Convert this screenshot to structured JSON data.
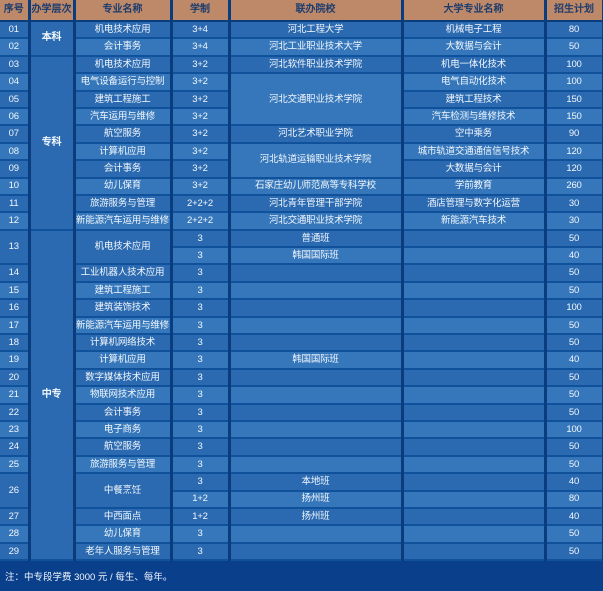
{
  "colors": {
    "page-bg": "#0a3f8c",
    "vgap": "#0a3d7e",
    "hgap": "#10519c",
    "row-a": "#2b6ab0",
    "row-b": "#3577ba",
    "level-bg": "#1d5fa8",
    "header-bg": "#bd8969",
    "header-text": "#1d3c6e",
    "cell-text": "#f2f7fd"
  },
  "table": {
    "headers": [
      "序号",
      "办学层次",
      "专业名称",
      "学制",
      "联办院校",
      "大学专业名称",
      "招生计划"
    ],
    "column_names": [
      "index",
      "level",
      "major",
      "duration",
      "partner",
      "university-major",
      "quota"
    ],
    "rows": [
      {
        "cells": [
          {
            "t": "01"
          },
          {
            "t": "本科",
            "rs": 2,
            "lvl": 1
          },
          {
            "t": "机电技术应用"
          },
          {
            "t": "3+4"
          },
          {
            "t": "河北工程大学"
          },
          {
            "t": "机械电子工程"
          },
          {
            "t": "80"
          }
        ]
      },
      {
        "cells": [
          {
            "t": "02"
          },
          {
            "t": "会计事务"
          },
          {
            "t": "3+4"
          },
          {
            "t": "河北工业职业技术大学"
          },
          {
            "t": "大数据与会计"
          },
          {
            "t": "50"
          }
        ]
      },
      {
        "cells": [
          {
            "t": "03"
          },
          {
            "t": "专科",
            "rs": 10,
            "lvl": 1
          },
          {
            "t": "机电技术应用"
          },
          {
            "t": "3+2"
          },
          {
            "t": "河北软件职业技术学院"
          },
          {
            "t": "机电一体化技术"
          },
          {
            "t": "100"
          }
        ]
      },
      {
        "cells": [
          {
            "t": "04"
          },
          {
            "t": "电气设备运行与控制"
          },
          {
            "t": "3+2"
          },
          {
            "t": "河北交通职业技术学院",
            "rs": 3
          },
          {
            "t": "电气自动化技术"
          },
          {
            "t": "100"
          }
        ]
      },
      {
        "cells": [
          {
            "t": "05"
          },
          {
            "t": "建筑工程施工"
          },
          {
            "t": "3+2"
          },
          {
            "t": "建筑工程技术"
          },
          {
            "t": "150"
          }
        ]
      },
      {
        "cells": [
          {
            "t": "06"
          },
          {
            "t": "汽车运用与维修"
          },
          {
            "t": "3+2"
          },
          {
            "t": "汽车检测与维修技术"
          },
          {
            "t": "150"
          }
        ]
      },
      {
        "cells": [
          {
            "t": "07"
          },
          {
            "t": "航空服务"
          },
          {
            "t": "3+2"
          },
          {
            "t": "河北艺术职业学院"
          },
          {
            "t": "空中乘务"
          },
          {
            "t": "90"
          }
        ]
      },
      {
        "cells": [
          {
            "t": "08"
          },
          {
            "t": "计算机应用"
          },
          {
            "t": "3+2"
          },
          {
            "t": "河北轨道运输职业技术学院",
            "rs": 2
          },
          {
            "t": "城市轨道交通通信信号技术"
          },
          {
            "t": "120"
          }
        ]
      },
      {
        "cells": [
          {
            "t": "09"
          },
          {
            "t": "会计事务"
          },
          {
            "t": "3+2"
          },
          {
            "t": "大数据与会计"
          },
          {
            "t": "120"
          }
        ]
      },
      {
        "cells": [
          {
            "t": "10"
          },
          {
            "t": "幼儿保育"
          },
          {
            "t": "3+2"
          },
          {
            "t": "石家庄幼儿师范高等专科学校"
          },
          {
            "t": "学前教育"
          },
          {
            "t": "260"
          }
        ]
      },
      {
        "cells": [
          {
            "t": "11"
          },
          {
            "t": "旅游服务与管理"
          },
          {
            "t": "2+2+2"
          },
          {
            "t": "河北青年管理干部学院"
          },
          {
            "t": "酒店管理与数字化运营"
          },
          {
            "t": "30"
          }
        ]
      },
      {
        "cells": [
          {
            "t": "12"
          },
          {
            "t": "新能源汽车运用与维修"
          },
          {
            "t": "2+2+2"
          },
          {
            "t": "河北交通职业技术学院"
          },
          {
            "t": "新能源汽车技术"
          },
          {
            "t": "30"
          }
        ]
      },
      {
        "cells": [
          {
            "t": "13",
            "rs": 2
          },
          {
            "t": "中专",
            "rs": 19,
            "lvl": 1
          },
          {
            "t": "机电技术应用",
            "rs": 2
          },
          {
            "t": "3"
          },
          {
            "t": "普通班"
          },
          {
            "t": ""
          },
          {
            "t": "50"
          }
        ]
      },
      {
        "cells": [
          {
            "t": "3"
          },
          {
            "t": "韩国国际班"
          },
          {
            "t": ""
          },
          {
            "t": "40"
          }
        ]
      },
      {
        "cells": [
          {
            "t": "14"
          },
          {
            "t": "工业机器人技术应用"
          },
          {
            "t": "3"
          },
          {
            "t": ""
          },
          {
            "t": ""
          },
          {
            "t": "50"
          }
        ]
      },
      {
        "cells": [
          {
            "t": "15"
          },
          {
            "t": "建筑工程施工"
          },
          {
            "t": "3"
          },
          {
            "t": ""
          },
          {
            "t": ""
          },
          {
            "t": "50"
          }
        ]
      },
      {
        "cells": [
          {
            "t": "16"
          },
          {
            "t": "建筑装饰技术"
          },
          {
            "t": "3"
          },
          {
            "t": ""
          },
          {
            "t": ""
          },
          {
            "t": "100"
          }
        ]
      },
      {
        "cells": [
          {
            "t": "17"
          },
          {
            "t": "新能源汽车运用与维修"
          },
          {
            "t": "3"
          },
          {
            "t": ""
          },
          {
            "t": ""
          },
          {
            "t": "50"
          }
        ]
      },
      {
        "cells": [
          {
            "t": "18"
          },
          {
            "t": "计算机网络技术"
          },
          {
            "t": "3"
          },
          {
            "t": ""
          },
          {
            "t": ""
          },
          {
            "t": "50"
          }
        ]
      },
      {
        "cells": [
          {
            "t": "19"
          },
          {
            "t": "计算机应用"
          },
          {
            "t": "3"
          },
          {
            "t": "韩国国际班"
          },
          {
            "t": ""
          },
          {
            "t": "40"
          }
        ]
      },
      {
        "cells": [
          {
            "t": "20"
          },
          {
            "t": "数字媒体技术应用"
          },
          {
            "t": "3"
          },
          {
            "t": ""
          },
          {
            "t": ""
          },
          {
            "t": "50"
          }
        ]
      },
      {
        "cells": [
          {
            "t": "21"
          },
          {
            "t": "物联网技术应用"
          },
          {
            "t": "3"
          },
          {
            "t": ""
          },
          {
            "t": ""
          },
          {
            "t": "50"
          }
        ]
      },
      {
        "cells": [
          {
            "t": "22"
          },
          {
            "t": "会计事务"
          },
          {
            "t": "3"
          },
          {
            "t": ""
          },
          {
            "t": ""
          },
          {
            "t": "50"
          }
        ]
      },
      {
        "cells": [
          {
            "t": "23"
          },
          {
            "t": "电子商务"
          },
          {
            "t": "3"
          },
          {
            "t": ""
          },
          {
            "t": ""
          },
          {
            "t": "100"
          }
        ]
      },
      {
        "cells": [
          {
            "t": "24"
          },
          {
            "t": "航空服务"
          },
          {
            "t": "3"
          },
          {
            "t": ""
          },
          {
            "t": ""
          },
          {
            "t": "50"
          }
        ]
      },
      {
        "cells": [
          {
            "t": "25"
          },
          {
            "t": "旅游服务与管理"
          },
          {
            "t": "3"
          },
          {
            "t": ""
          },
          {
            "t": ""
          },
          {
            "t": "50"
          }
        ]
      },
      {
        "cells": [
          {
            "t": "26",
            "rs": 2
          },
          {
            "t": "中餐烹饪",
            "rs": 2
          },
          {
            "t": "3"
          },
          {
            "t": "本地班"
          },
          {
            "t": ""
          },
          {
            "t": "40"
          }
        ]
      },
      {
        "cells": [
          {
            "t": "1+2"
          },
          {
            "t": "扬州班"
          },
          {
            "t": ""
          },
          {
            "t": "80"
          }
        ]
      },
      {
        "cells": [
          {
            "t": "27"
          },
          {
            "t": "中西面点"
          },
          {
            "t": "1+2"
          },
          {
            "t": "扬州班"
          },
          {
            "t": ""
          },
          {
            "t": "40"
          }
        ]
      },
      {
        "cells": [
          {
            "t": "28"
          },
          {
            "t": "幼儿保育"
          },
          {
            "t": "3"
          },
          {
            "t": ""
          },
          {
            "t": ""
          },
          {
            "t": "50"
          }
        ]
      },
      {
        "cells": [
          {
            "t": "29"
          },
          {
            "t": "老年人服务与管理"
          },
          {
            "t": "3"
          },
          {
            "t": ""
          },
          {
            "t": ""
          },
          {
            "t": "50"
          }
        ]
      }
    ]
  },
  "footer": {
    "note": "注：中专段学费 3000 元 / 每生、每年。"
  }
}
